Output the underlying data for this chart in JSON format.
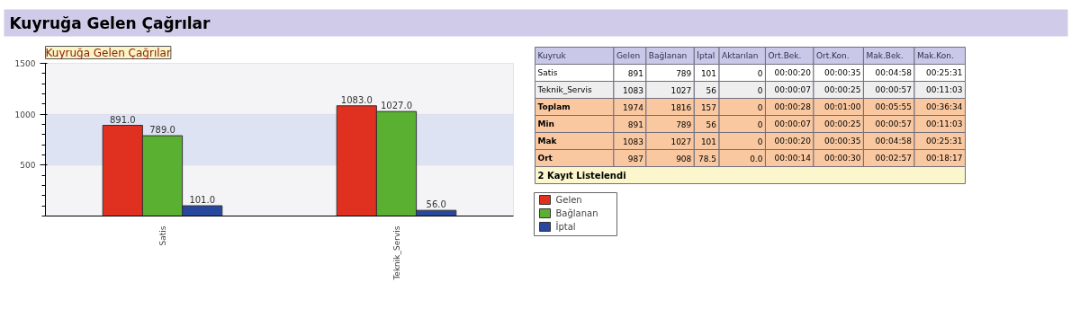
{
  "chart_data": [
    {
      "type": "other",
      "title": "Kuyruğa Gelen Çağrılar"
    },
    {
      "type": "bar",
      "title": "Kuyruğa Gelen Çağrılar",
      "categories": [
        "Satis",
        "Teknik_Servis"
      ],
      "series": [
        {
          "name": "Gelen",
          "color": "#e03020",
          "values": [
            891,
            1083
          ],
          "value_labels": [
            "891.0",
            "1083.0"
          ]
        },
        {
          "name": "Bağlanan",
          "color": "#5ab030",
          "values": [
            789,
            1027
          ],
          "value_labels": [
            "789.0",
            "1027.0"
          ]
        },
        {
          "name": "İptal",
          "color": "#2848a0",
          "values": [
            101,
            56
          ],
          "value_labels": [
            "101.0",
            "56.0"
          ]
        }
      ],
      "ylim": [
        0,
        1500
      ],
      "yticks": [
        500,
        1000,
        1500
      ],
      "bands": [
        {
          "axis": "y",
          "from": 500,
          "to": 1000,
          "color": "#dde3f3"
        }
      ],
      "legend": "right"
    },
    {
      "type": "other",
      "categories": [
        "Kuyruk",
        "Gelen",
        "Bağlanan",
        "İptal",
        "Aktarılan",
        "Ort.Bek.",
        "Ort.Kon.",
        "Mak.Bek.",
        "Mak.Kon."
      ],
      "y_categories": [
        "Satis",
        "Teknik_Servis",
        "Toplam",
        "Min",
        "Mak",
        "Ort"
      ],
      "cell_labels": [
        [
          "891",
          "789",
          "101",
          "0",
          "00:00:20",
          "00:00:35",
          "00:04:58",
          "00:25:31"
        ],
        [
          "1083",
          "1027",
          "56",
          "0",
          "00:00:07",
          "00:00:25",
          "00:00:57",
          "00:11:03"
        ],
        [
          "1974",
          "1816",
          "157",
          "0",
          "00:00:28",
          "00:01:00",
          "00:05:55",
          "00:36:34"
        ],
        [
          "891",
          "789",
          "56",
          "0",
          "00:00:07",
          "00:00:25",
          "00:00:57",
          "00:11:03"
        ],
        [
          "1083",
          "1027",
          "101",
          "0",
          "00:00:20",
          "00:00:35",
          "00:04:58",
          "00:25:31"
        ],
        [
          "987",
          "908",
          "78.5",
          "0.0",
          "00:00:14",
          "00:00:30",
          "00:02:57",
          "00:18:17"
        ]
      ],
      "annotations": [
        "2 Kayıt Listelendi"
      ]
    }
  ]
}
